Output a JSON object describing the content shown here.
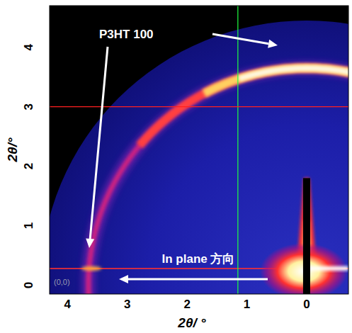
{
  "chart_data": {
    "type": "image",
    "x_label": "2θ/ °",
    "y_label": "2θ/°",
    "xlim": [
      4.3,
      -0.7
    ],
    "ylim": [
      -0.15,
      4.7
    ],
    "xticks": [
      4,
      3,
      2,
      1,
      0
    ],
    "yticks": [
      0,
      1,
      2,
      3,
      4
    ],
    "grid": false,
    "ring_radius": 3.65,
    "detector_radius": 4.45,
    "horizon_y": 0.28,
    "in_plane_peak_x": 3.6,
    "beamstop_top": 1.8,
    "cursor_x": 1.15,
    "cursor_y": 3.0,
    "annotations": [
      "P3HT 100",
      "In plane 方向",
      "(0,0)"
    ]
  }
}
